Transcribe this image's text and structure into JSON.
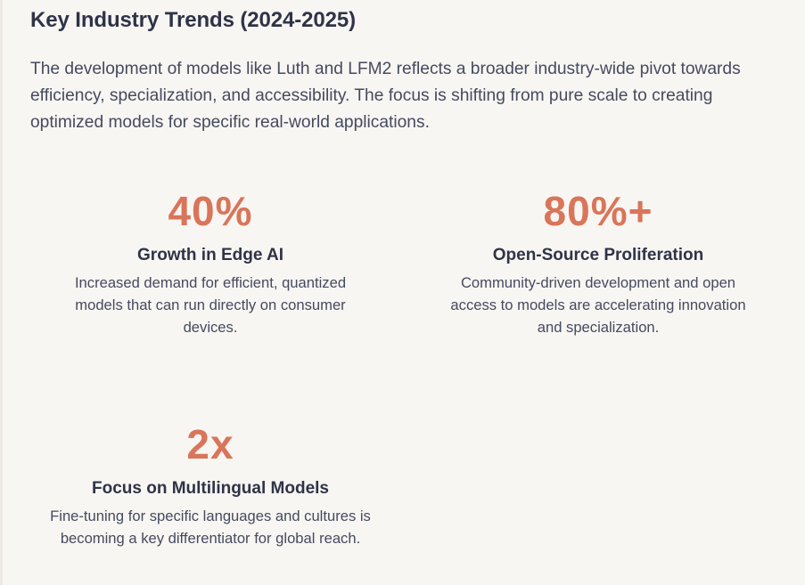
{
  "section": {
    "title": "Key Industry Trends (2024-2025)",
    "intro": "The development of models like Luth and LFM2 reflects a broader industry-wide pivot towards efficiency, specialization, and accessibility. The focus is shifting from pure scale to creating optimized models for specific real-world applications."
  },
  "stats": [
    {
      "value": "40%",
      "label": "Growth in Edge AI",
      "description": "Increased demand for efficient, quantized models that can run directly on consumer devices."
    },
    {
      "value": "80%+",
      "label": "Open-Source Proliferation",
      "description": "Community-driven development and open access to models are accelerating innovation and specialization."
    },
    {
      "value": "2x",
      "label": "Focus on Multilingual Models",
      "description": "Fine-tuning for specific languages and cultures is becoming a key differentiator for global reach."
    }
  ],
  "colors": {
    "accent": "#d9755a",
    "heading": "#2f3347",
    "body_text": "#454a5e",
    "background": "#f8f6f3"
  }
}
